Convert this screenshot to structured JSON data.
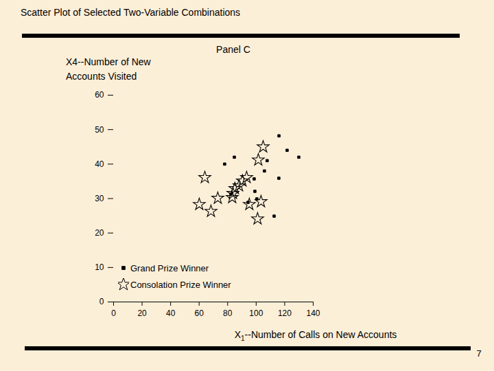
{
  "chart_data": {
    "type": "scatter",
    "title": "Scatter Plot of Selected Two-Variable Combinations",
    "subtitle": "Panel C",
    "x_label": "X1--Number of Calls on New Accounts",
    "y_label": "X4--Number of New Accounts Visited",
    "annotations": [
      "7"
    ],
    "xlim": [
      0,
      140
    ],
    "xticks": [
      0,
      20,
      40,
      60,
      80,
      100,
      120,
      140
    ],
    "ylim": [
      0,
      60
    ],
    "yticks": [
      0,
      10,
      20,
      30,
      40,
      50,
      60
    ],
    "grid": false,
    "legend": "bottom-left",
    "series": [
      {
        "name": "Grand Prize Winner",
        "color": "#000000",
        "marker": "square",
        "x": [
          116,
          121.7,
          129.9,
          84.7,
          77.9,
          107.7,
          105.8,
          115.9,
          98.6,
          99.1,
          100.5,
          94.3,
          112.6,
          82.3
        ],
        "values": [
          48.2,
          44,
          42,
          42,
          40,
          41,
          38,
          35.9,
          35.7,
          32.1,
          29.9,
          28.9,
          24.9,
          31.3
        ]
      },
      {
        "name": "Consolation Prize Winner",
        "color": "#000000",
        "marker": "star",
        "x": [
          104.9,
          101.5,
          64,
          93.3,
          90.4,
          88,
          85.1,
          83.7,
          83.2,
          73.1,
          60.1,
          68.3,
          95.2,
          103.4,
          101
        ],
        "values": [
          45,
          41.2,
          36.1,
          36.1,
          35.1,
          33.7,
          32.9,
          31.5,
          30.3,
          30.1,
          28.3,
          26.3,
          28.3,
          29.1,
          24.1
        ]
      }
    ]
  }
}
